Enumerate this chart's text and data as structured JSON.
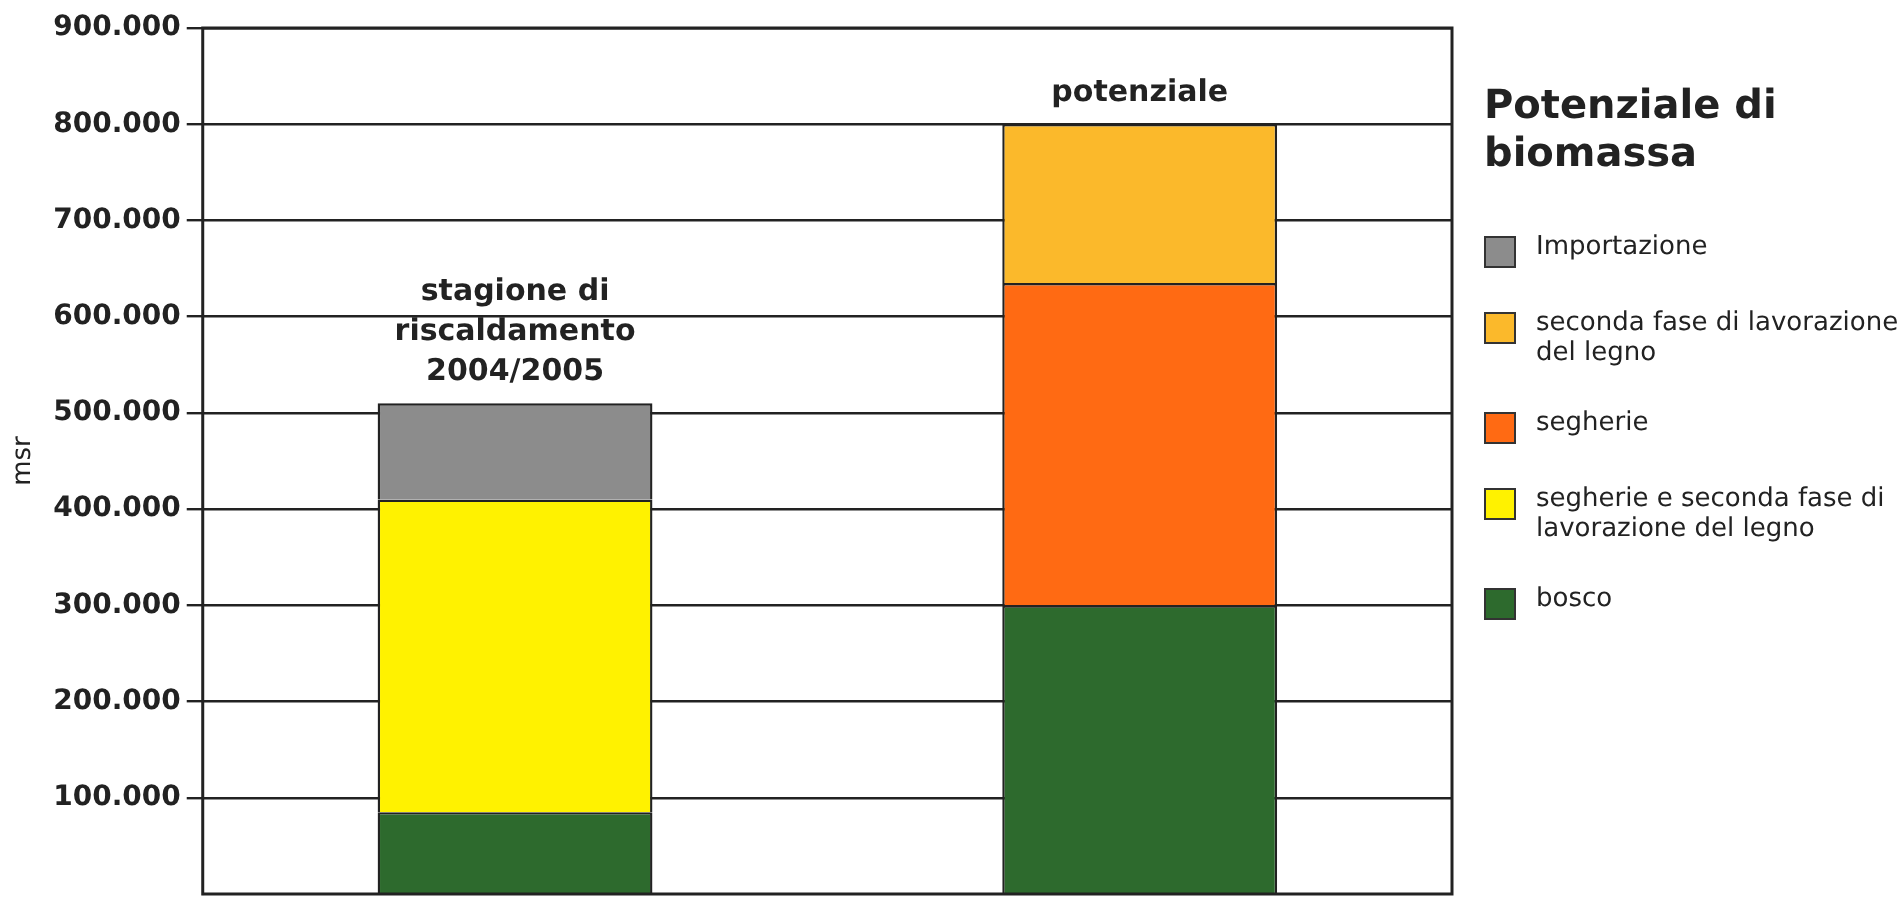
{
  "chart_data": {
    "type": "bar",
    "stacked": true,
    "legend_title": "Potenziale di biomassa",
    "ylabel": "msr",
    "categories": [
      "stagione di riscaldamento 2004/2005",
      "potenziale"
    ],
    "series": [
      {
        "name": "bosco",
        "color": "#2d6a2d",
        "values": [
          85000,
          300000
        ]
      },
      {
        "name": "segherie e seconda fase di lavorazione del legno",
        "color": "#fff200",
        "values": [
          325000,
          null
        ]
      },
      {
        "name": "segherie",
        "color": "#ff6a13",
        "values": [
          null,
          335000
        ]
      },
      {
        "name": "seconda fase di lavorazione del legno",
        "color": "#fbb92b",
        "values": [
          null,
          165000
        ]
      },
      {
        "name": "Importazione",
        "color": "#8c8c8c",
        "values": [
          100000,
          null
        ]
      }
    ],
    "ylim": [
      0,
      900000
    ],
    "yticks": [
      {
        "value": 100000,
        "label": "100.000"
      },
      {
        "value": 200000,
        "label": "200.000"
      },
      {
        "value": 300000,
        "label": "300.000"
      },
      {
        "value": 400000,
        "label": "400.000"
      },
      {
        "value": 500000,
        "label": "500.000"
      },
      {
        "value": 600000,
        "label": "600.000"
      },
      {
        "value": 700000,
        "label": "700.000"
      },
      {
        "value": 800000,
        "label": "800.000"
      },
      {
        "value": 900000,
        "label": "900.000"
      }
    ],
    "grid": "y",
    "legend": "right",
    "tick_labels": "y"
  }
}
